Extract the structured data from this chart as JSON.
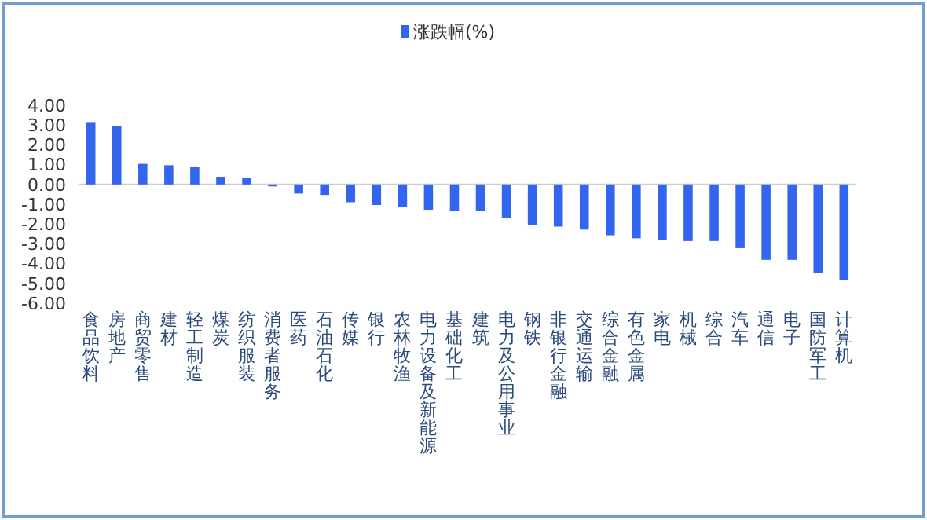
{
  "chart_data": {
    "type": "bar",
    "categories": [
      "食品饮料",
      "房地产",
      "商贸零售",
      "建材",
      "轻工制造",
      "煤炭",
      "纺织服装",
      "消费者服务",
      "医药",
      "石油石化",
      "传媒",
      "银行",
      "农林牧渔",
      "电力设备及新能源",
      "基础化工",
      "建筑",
      "电力及公用事业",
      "钢铁",
      "非银行金融",
      "交通运输",
      "综合金融",
      "有色金属",
      "家电",
      "机械",
      "综合",
      "汽车",
      "通信",
      "电子",
      "国防军工",
      "计算机"
    ],
    "series": [
      {
        "name": "涨跌幅(%)",
        "color": "#3366ee",
        "values": [
          3.15,
          2.93,
          1.04,
          0.97,
          0.9,
          0.39,
          0.32,
          -0.1,
          -0.46,
          -0.53,
          -0.9,
          -1.04,
          -1.12,
          -1.28,
          -1.33,
          -1.33,
          -1.7,
          -2.06,
          -2.13,
          -2.28,
          -2.57,
          -2.72,
          -2.79,
          -2.86,
          -2.86,
          -3.22,
          -3.81,
          -3.81,
          -4.46,
          -4.82
        ]
      }
    ],
    "ylim": [
      -6,
      4
    ],
    "yticks": [
      {
        "value": 4,
        "label": "4.00"
      },
      {
        "value": 3,
        "label": "3.00"
      },
      {
        "value": 2,
        "label": "2.00"
      },
      {
        "value": 1,
        "label": "1.00"
      },
      {
        "value": 0,
        "label": "0.00"
      },
      {
        "value": -1,
        "label": "-1.00"
      },
      {
        "value": -2,
        "label": "-2.00"
      },
      {
        "value": -3,
        "label": "-3.00"
      },
      {
        "value": -4,
        "label": "-4.00"
      },
      {
        "value": -5,
        "label": "-5.00"
      },
      {
        "value": -6,
        "label": "-6.00"
      }
    ],
    "legend": "top"
  }
}
